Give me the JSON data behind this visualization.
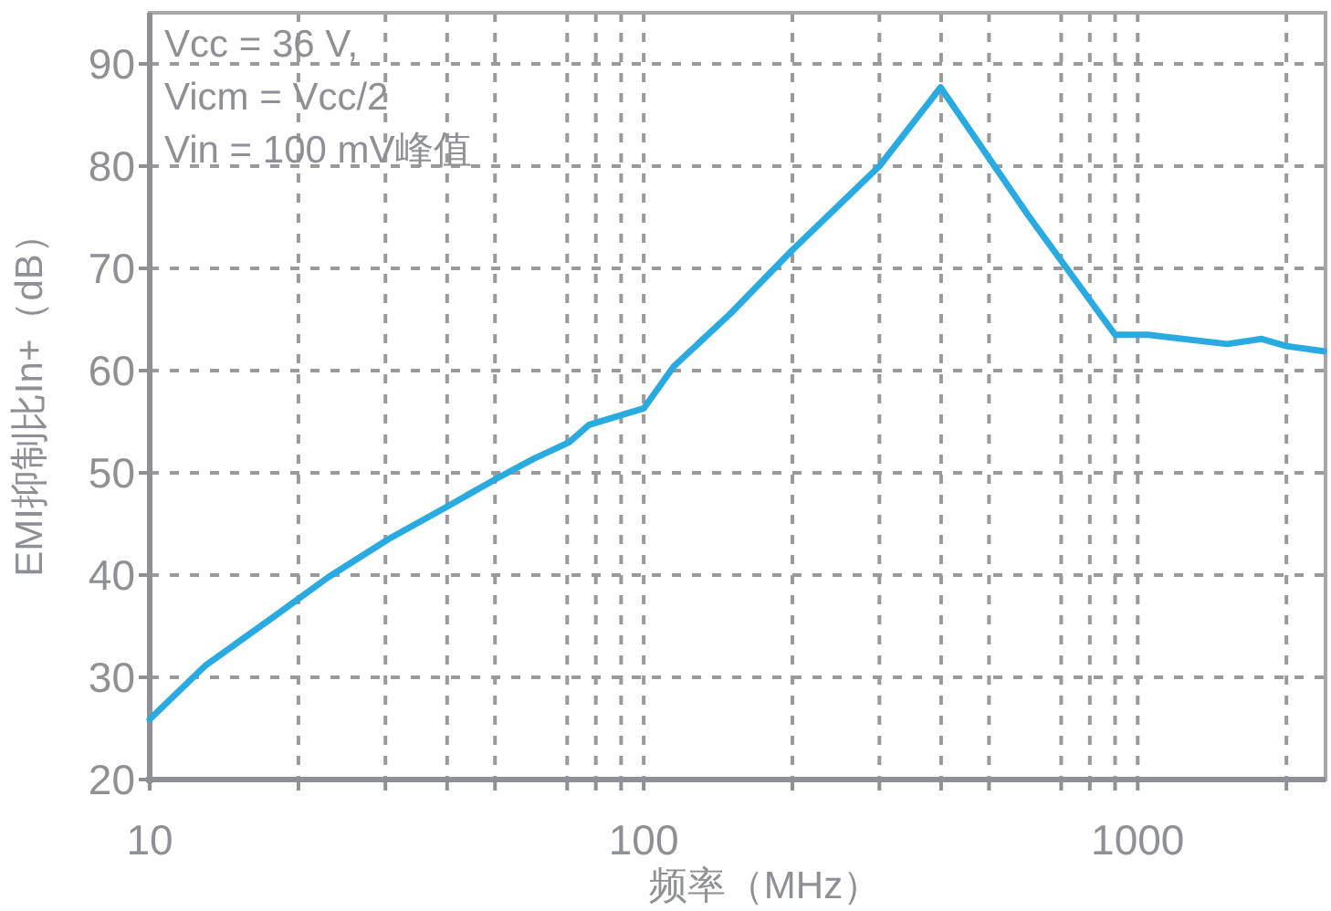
{
  "chart_data": {
    "type": "line",
    "xlabel": "频率（MHz）",
    "ylabel": "EMI抑制比In+（dB）",
    "annotations": [
      "Vcc = 36 V,",
      "Vicm = Vcc/2",
      "Vin = 100 mV峰值"
    ],
    "x": [
      10,
      13,
      17.8,
      23,
      30.4,
      40,
      50.2,
      60,
      70.7,
      77.5,
      100,
      115,
      150,
      199,
      300,
      399,
      600,
      900,
      1052,
      1517,
      1783,
      2000,
      2380
    ],
    "series": [
      {
        "color": "#29abe2",
        "values": [
          25.9,
          31.2,
          35.9,
          39.8,
          43.5,
          46.7,
          49.4,
          51.4,
          53.0,
          54.7,
          56.3,
          60.4,
          65.6,
          71.7,
          80.0,
          87.7,
          75.2,
          63.5,
          63.5,
          62.6,
          63.1,
          62.4,
          61.9
        ]
      }
    ],
    "log": "x",
    "xlim": [
      10,
      2400
    ],
    "ylim": [
      20,
      95
    ],
    "xticks": [
      10,
      {
        "value": 20,
        "label": null
      },
      {
        "value": 30,
        "label": null
      },
      {
        "value": 40,
        "label": null
      },
      {
        "value": 50,
        "label": null
      },
      {
        "value": 70,
        "label": null
      },
      {
        "value": 80,
        "label": null
      },
      {
        "value": 90,
        "label": null
      },
      100,
      {
        "value": 200,
        "label": null
      },
      {
        "value": 300,
        "label": null
      },
      {
        "value": 400,
        "label": null
      },
      {
        "value": 500,
        "label": null
      },
      {
        "value": 700,
        "label": null
      },
      {
        "value": 800,
        "label": null
      },
      {
        "value": 900,
        "label": null
      },
      1000,
      {
        "value": 2000,
        "label": null
      }
    ],
    "yticks": [
      20,
      30,
      40,
      50,
      60,
      70,
      80,
      90
    ],
    "grid": true
  }
}
